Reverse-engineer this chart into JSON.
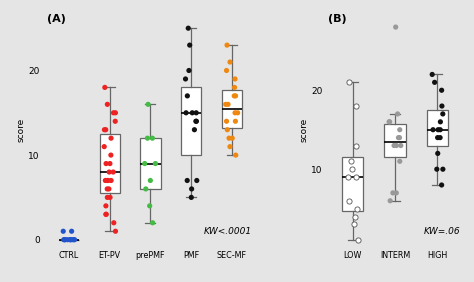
{
  "panel_A": {
    "title": "(A)",
    "ylabel": "score",
    "kw_text": "KW<.0001",
    "categories": [
      "CTRL",
      "ET-PV",
      "prePMF",
      "PMF",
      "SEC-MF"
    ],
    "colors": [
      "#2255CC",
      "#EE2222",
      "#44BB44",
      "#111111",
      "#EE8811"
    ],
    "data": {
      "CTRL": [
        0,
        0,
        0,
        0,
        0,
        0,
        0,
        0,
        0,
        1,
        1
      ],
      "ET-PV": [
        1,
        2,
        3,
        3,
        4,
        5,
        5,
        6,
        6,
        7,
        7,
        7,
        7,
        8,
        8,
        9,
        9,
        10,
        11,
        12,
        13,
        13,
        14,
        15,
        15,
        16,
        18
      ],
      "prePMF": [
        2,
        4,
        6,
        7,
        9,
        9,
        12,
        12,
        16
      ],
      "PMF": [
        5,
        6,
        7,
        7,
        13,
        14,
        14,
        15,
        15,
        15,
        17,
        19,
        20,
        23,
        25
      ],
      "SEC-MF": [
        10,
        11,
        12,
        12,
        13,
        14,
        14,
        15,
        15,
        16,
        16,
        17,
        17,
        18,
        19,
        20,
        21,
        23
      ]
    },
    "ylim": [
      -1,
      27
    ],
    "yticks": [
      0,
      10,
      20
    ]
  },
  "panel_B": {
    "title": "(B)",
    "ylabel": "score",
    "kw_text": "KW=.06",
    "categories": [
      "LOW",
      "INTERM",
      "HIGH"
    ],
    "colors": [
      "white",
      "#999999",
      "#111111"
    ],
    "edge_colors": [
      "#555555",
      "#777777",
      "#111111"
    ],
    "data": {
      "LOW": [
        1,
        3,
        4,
        5,
        6,
        9,
        9,
        10,
        11,
        13,
        18,
        21
      ],
      "INTERM": [
        6,
        7,
        7,
        11,
        13,
        13,
        13,
        14,
        14,
        15,
        16,
        16,
        17,
        28
      ],
      "HIGH": [
        8,
        10,
        10,
        12,
        14,
        14,
        15,
        15,
        15,
        16,
        17,
        18,
        20,
        21,
        22
      ]
    },
    "ylim": [
      0,
      30
    ],
    "yticks": [
      10,
      20
    ]
  },
  "bg_color": "#E5E5E5",
  "dot_size": 14,
  "jitter_seed": 42
}
